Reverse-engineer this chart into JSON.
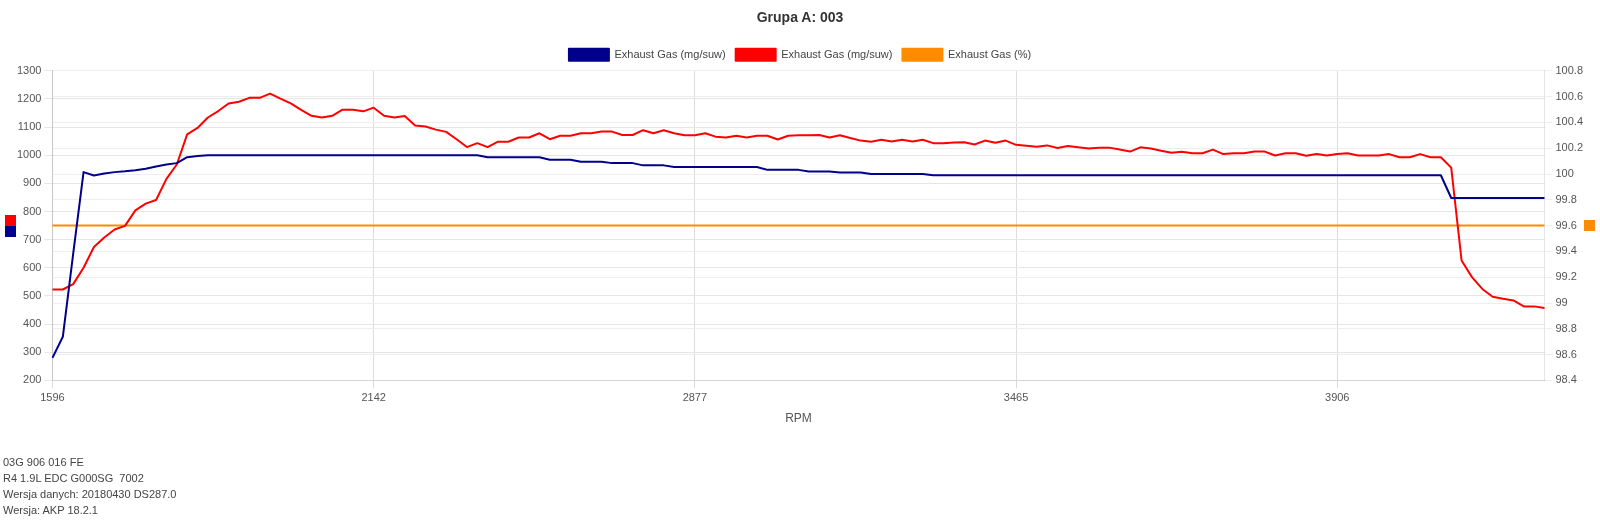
{
  "chart_data": {
    "type": "line",
    "title": "Grupa A: 003",
    "xlabel": "RPM",
    "categories": [
      "1596",
      null,
      null,
      null,
      null,
      null,
      null,
      null,
      null,
      null,
      null,
      null,
      null,
      null,
      null,
      null,
      null,
      null,
      null,
      null,
      null,
      null,
      null,
      null,
      null,
      null,
      null,
      null,
      null,
      null,
      null,
      "2142",
      null,
      null,
      null,
      null,
      null,
      null,
      null,
      null,
      null,
      null,
      null,
      null,
      null,
      null,
      null,
      null,
      null,
      null,
      null,
      null,
      null,
      null,
      null,
      null,
      null,
      null,
      null,
      null,
      null,
      null,
      "2877",
      null,
      null,
      null,
      null,
      null,
      null,
      null,
      null,
      null,
      null,
      null,
      null,
      null,
      null,
      null,
      null,
      null,
      null,
      null,
      null,
      null,
      null,
      null,
      null,
      null,
      null,
      null,
      null,
      null,
      null,
      "3465",
      null,
      null,
      null,
      null,
      null,
      null,
      null,
      null,
      null,
      null,
      null,
      null,
      null,
      null,
      null,
      null,
      null,
      null,
      null,
      null,
      null,
      null,
      null,
      null,
      null,
      null,
      null,
      null,
      null,
      null,
      "3906",
      null,
      null,
      null,
      null,
      null,
      null,
      null,
      null,
      null,
      null,
      null,
      null,
      null,
      null,
      null,
      null,
      null,
      null,
      null,
      null
    ],
    "series": [
      {
        "name": "Exhaust Gas (mg/suw)",
        "color": "#00008b",
        "values": [
          280,
          355,
          650,
          940,
          928,
          935,
          940,
          943,
          947,
          952,
          960,
          967,
          972,
          993,
          997,
          1000,
          1000,
          1000,
          1000,
          1000,
          1000,
          1000,
          1000,
          1000,
          1000,
          1000,
          1000,
          1000,
          1000,
          1000,
          1000,
          1000,
          1000,
          1000,
          1000,
          1000,
          1000,
          1000,
          1000,
          1000,
          1000,
          1000,
          993,
          993,
          993,
          993,
          993,
          993,
          984,
          984,
          984,
          977,
          977,
          977,
          972,
          972,
          972,
          964,
          964,
          964,
          958,
          958,
          958,
          958,
          958,
          958,
          958,
          958,
          958,
          948,
          948,
          948,
          948,
          942,
          942,
          942,
          939,
          939,
          939,
          933,
          933,
          933,
          933,
          933,
          933,
          929,
          929,
          929,
          929,
          929,
          929,
          929,
          929,
          929,
          929,
          929,
          929,
          929,
          929,
          929,
          929,
          929,
          929,
          929,
          929,
          929,
          929,
          929,
          929,
          929,
          929,
          929,
          929,
          929,
          929,
          929,
          929,
          929,
          929,
          929,
          929,
          929,
          929,
          929,
          929,
          929,
          929,
          929,
          929,
          929,
          929,
          929,
          929,
          929,
          929,
          848,
          848,
          848,
          848,
          848,
          848,
          848,
          848,
          848,
          848
        ]
      },
      {
        "name": "Exhaust Gas (mg/suw)",
        "color": "#ff0000",
        "values": [
          523,
          523,
          542,
          600,
          674,
          708,
          736,
          749,
          804,
          828,
          841,
          916,
          967,
          1074,
          1097,
          1134,
          1157,
          1184,
          1190,
          1204,
          1204,
          1219,
          1201,
          1184,
          1161,
          1140,
          1134,
          1140,
          1162,
          1162,
          1156,
          1169,
          1140,
          1134,
          1139,
          1106,
          1102,
          1091,
          1083,
          1057,
          1029,
          1043,
          1029,
          1048,
          1048,
          1063,
          1063,
          1078,
          1057,
          1069,
          1069,
          1078,
          1078,
          1084,
          1084,
          1072,
          1072,
          1089,
          1078,
          1089,
          1078,
          1071,
          1071,
          1078,
          1066,
          1063,
          1069,
          1063,
          1069,
          1069,
          1056,
          1069,
          1071,
          1071,
          1072,
          1063,
          1071,
          1061,
          1052,
          1048,
          1055,
          1049,
          1055,
          1049,
          1055,
          1043,
          1043,
          1045,
          1046,
          1038,
          1052,
          1044,
          1052,
          1037,
          1034,
          1030,
          1035,
          1026,
          1033,
          1028,
          1024,
          1027,
          1027,
          1020,
          1013,
          1028,
          1024,
          1016,
          1009,
          1012,
          1007,
          1007,
          1020,
          1004,
          1007,
          1007,
          1013,
          1013,
          999,
          1007,
          1007,
          998,
          1004,
          999,
          1004,
          1007,
          999,
          999,
          999,
          1004,
          993,
          993,
          1004,
          993,
          993,
          956,
          626,
          567,
          525,
          497,
          490,
          484,
          463,
          463,
          457
        ]
      },
      {
        "name": "Exhaust Gas (%)",
        "color": "#ff8c00",
        "axis": "y2",
        "values": [
          99.6,
          99.6,
          99.6,
          99.6,
          99.6,
          99.6,
          99.6,
          99.6,
          99.6,
          99.6,
          99.6,
          99.6,
          99.6,
          99.6,
          99.6,
          99.6,
          99.6,
          99.6,
          99.6,
          99.6,
          99.6,
          99.6,
          99.6,
          99.6,
          99.6,
          99.6,
          99.6,
          99.6,
          99.6,
          99.6,
          99.6,
          99.6,
          99.6,
          99.6,
          99.6,
          99.6,
          99.6,
          99.6,
          99.6,
          99.6,
          99.6,
          99.6,
          99.6,
          99.6,
          99.6,
          99.6,
          99.6,
          99.6,
          99.6,
          99.6,
          99.6,
          99.6,
          99.6,
          99.6,
          99.6,
          99.6,
          99.6,
          99.6,
          99.6,
          99.6,
          99.6,
          99.6,
          99.6,
          99.6,
          99.6,
          99.6,
          99.6,
          99.6,
          99.6,
          99.6,
          99.6,
          99.6,
          99.6,
          99.6,
          99.6,
          99.6,
          99.6,
          99.6,
          99.6,
          99.6,
          99.6,
          99.6,
          99.6,
          99.6,
          99.6,
          99.6,
          99.6,
          99.6,
          99.6,
          99.6,
          99.6,
          99.6,
          99.6,
          99.6,
          99.6,
          99.6,
          99.6,
          99.6,
          99.6,
          99.6,
          99.6,
          99.6,
          99.6,
          99.6,
          99.6,
          99.6,
          99.6,
          99.6,
          99.6,
          99.6,
          99.6,
          99.6,
          99.6,
          99.6,
          99.6,
          99.6,
          99.6,
          99.6,
          99.6,
          99.6,
          99.6,
          99.6,
          99.6,
          99.6,
          99.6,
          99.6,
          99.6,
          99.6,
          99.6,
          99.6,
          99.6,
          99.6,
          99.6,
          99.6,
          99.6,
          99.6,
          99.6,
          99.6,
          99.6,
          99.6,
          99.6,
          99.6,
          99.6,
          99.6,
          99.6
        ]
      }
    ],
    "ylim": [
      200,
      1300
    ],
    "yticks": [
      200,
      300,
      400,
      500,
      600,
      700,
      800,
      900,
      1000,
      1100,
      1200,
      1300
    ],
    "y2lim": [
      98.4,
      100.8
    ],
    "y2ticks": [
      98.4,
      98.6,
      98.8,
      99,
      99.2,
      99.4,
      99.6,
      99.8,
      100,
      100.2,
      100.4,
      100.6,
      100.8
    ],
    "grid": true,
    "legend": "top",
    "marker": "none",
    "annotations": [
      "03G 906 016 FE",
      "R4 1.9L EDC G000SG  7002",
      "Wersja danych: 20180430 DS287.0",
      "Wersja: AKP 18.2.1"
    ]
  }
}
